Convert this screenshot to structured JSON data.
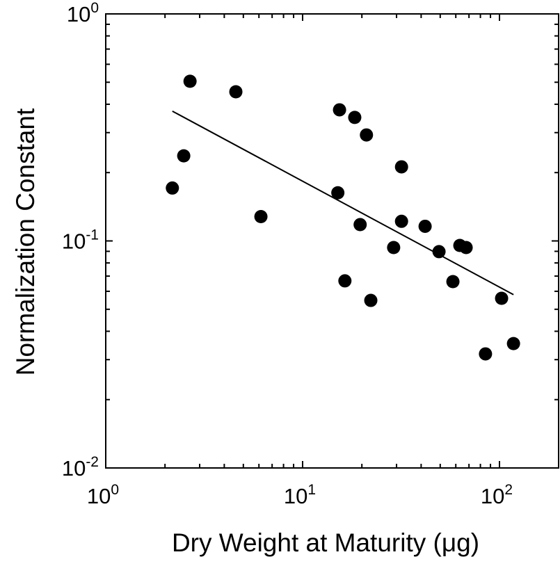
{
  "chart_data": {
    "type": "scatter",
    "title": "",
    "xlabel": "Dry Weight at Maturity (μg)",
    "ylabel": "Normalization Constant",
    "xscale": "log",
    "yscale": "log",
    "xlim": [
      1,
      150
    ],
    "ylim": [
      0.01,
      1
    ],
    "grid": false,
    "x_ticks": [
      {
        "base": "10",
        "exp": "0",
        "value": 1
      },
      {
        "base": "10",
        "exp": "1",
        "value": 10
      },
      {
        "base": "10",
        "exp": "2",
        "value": 100
      }
    ],
    "y_ticks": [
      {
        "base": "10",
        "exp": "-2",
        "value": 0.01
      },
      {
        "base": "10",
        "exp": "-1",
        "value": 0.1
      },
      {
        "base": "10",
        "exp": "0",
        "value": 1
      }
    ],
    "marker_color": "#000000",
    "points": [
      [
        2.18,
        0.171
      ],
      [
        2.49,
        0.237
      ],
      [
        2.68,
        0.505
      ],
      [
        4.58,
        0.454
      ],
      [
        6.14,
        0.128
      ],
      [
        15.1,
        0.163
      ],
      [
        15.4,
        0.378
      ],
      [
        16.4,
        0.0667
      ],
      [
        18.4,
        0.35
      ],
      [
        19.6,
        0.118
      ],
      [
        21.1,
        0.293
      ],
      [
        22.2,
        0.0547
      ],
      [
        29.0,
        0.0935
      ],
      [
        31.8,
        0.212
      ],
      [
        31.8,
        0.122
      ],
      [
        41.9,
        0.116
      ],
      [
        49.3,
        0.0897
      ],
      [
        58.0,
        0.0662
      ],
      [
        62.9,
        0.0955
      ],
      [
        67.7,
        0.0935
      ],
      [
        84.9,
        0.0318
      ],
      [
        102.5,
        0.0559
      ],
      [
        117.8,
        0.0353
      ]
    ],
    "fit_line": [
      [
        2.18,
        0.373
      ],
      [
        117.8,
        0.058
      ]
    ]
  }
}
